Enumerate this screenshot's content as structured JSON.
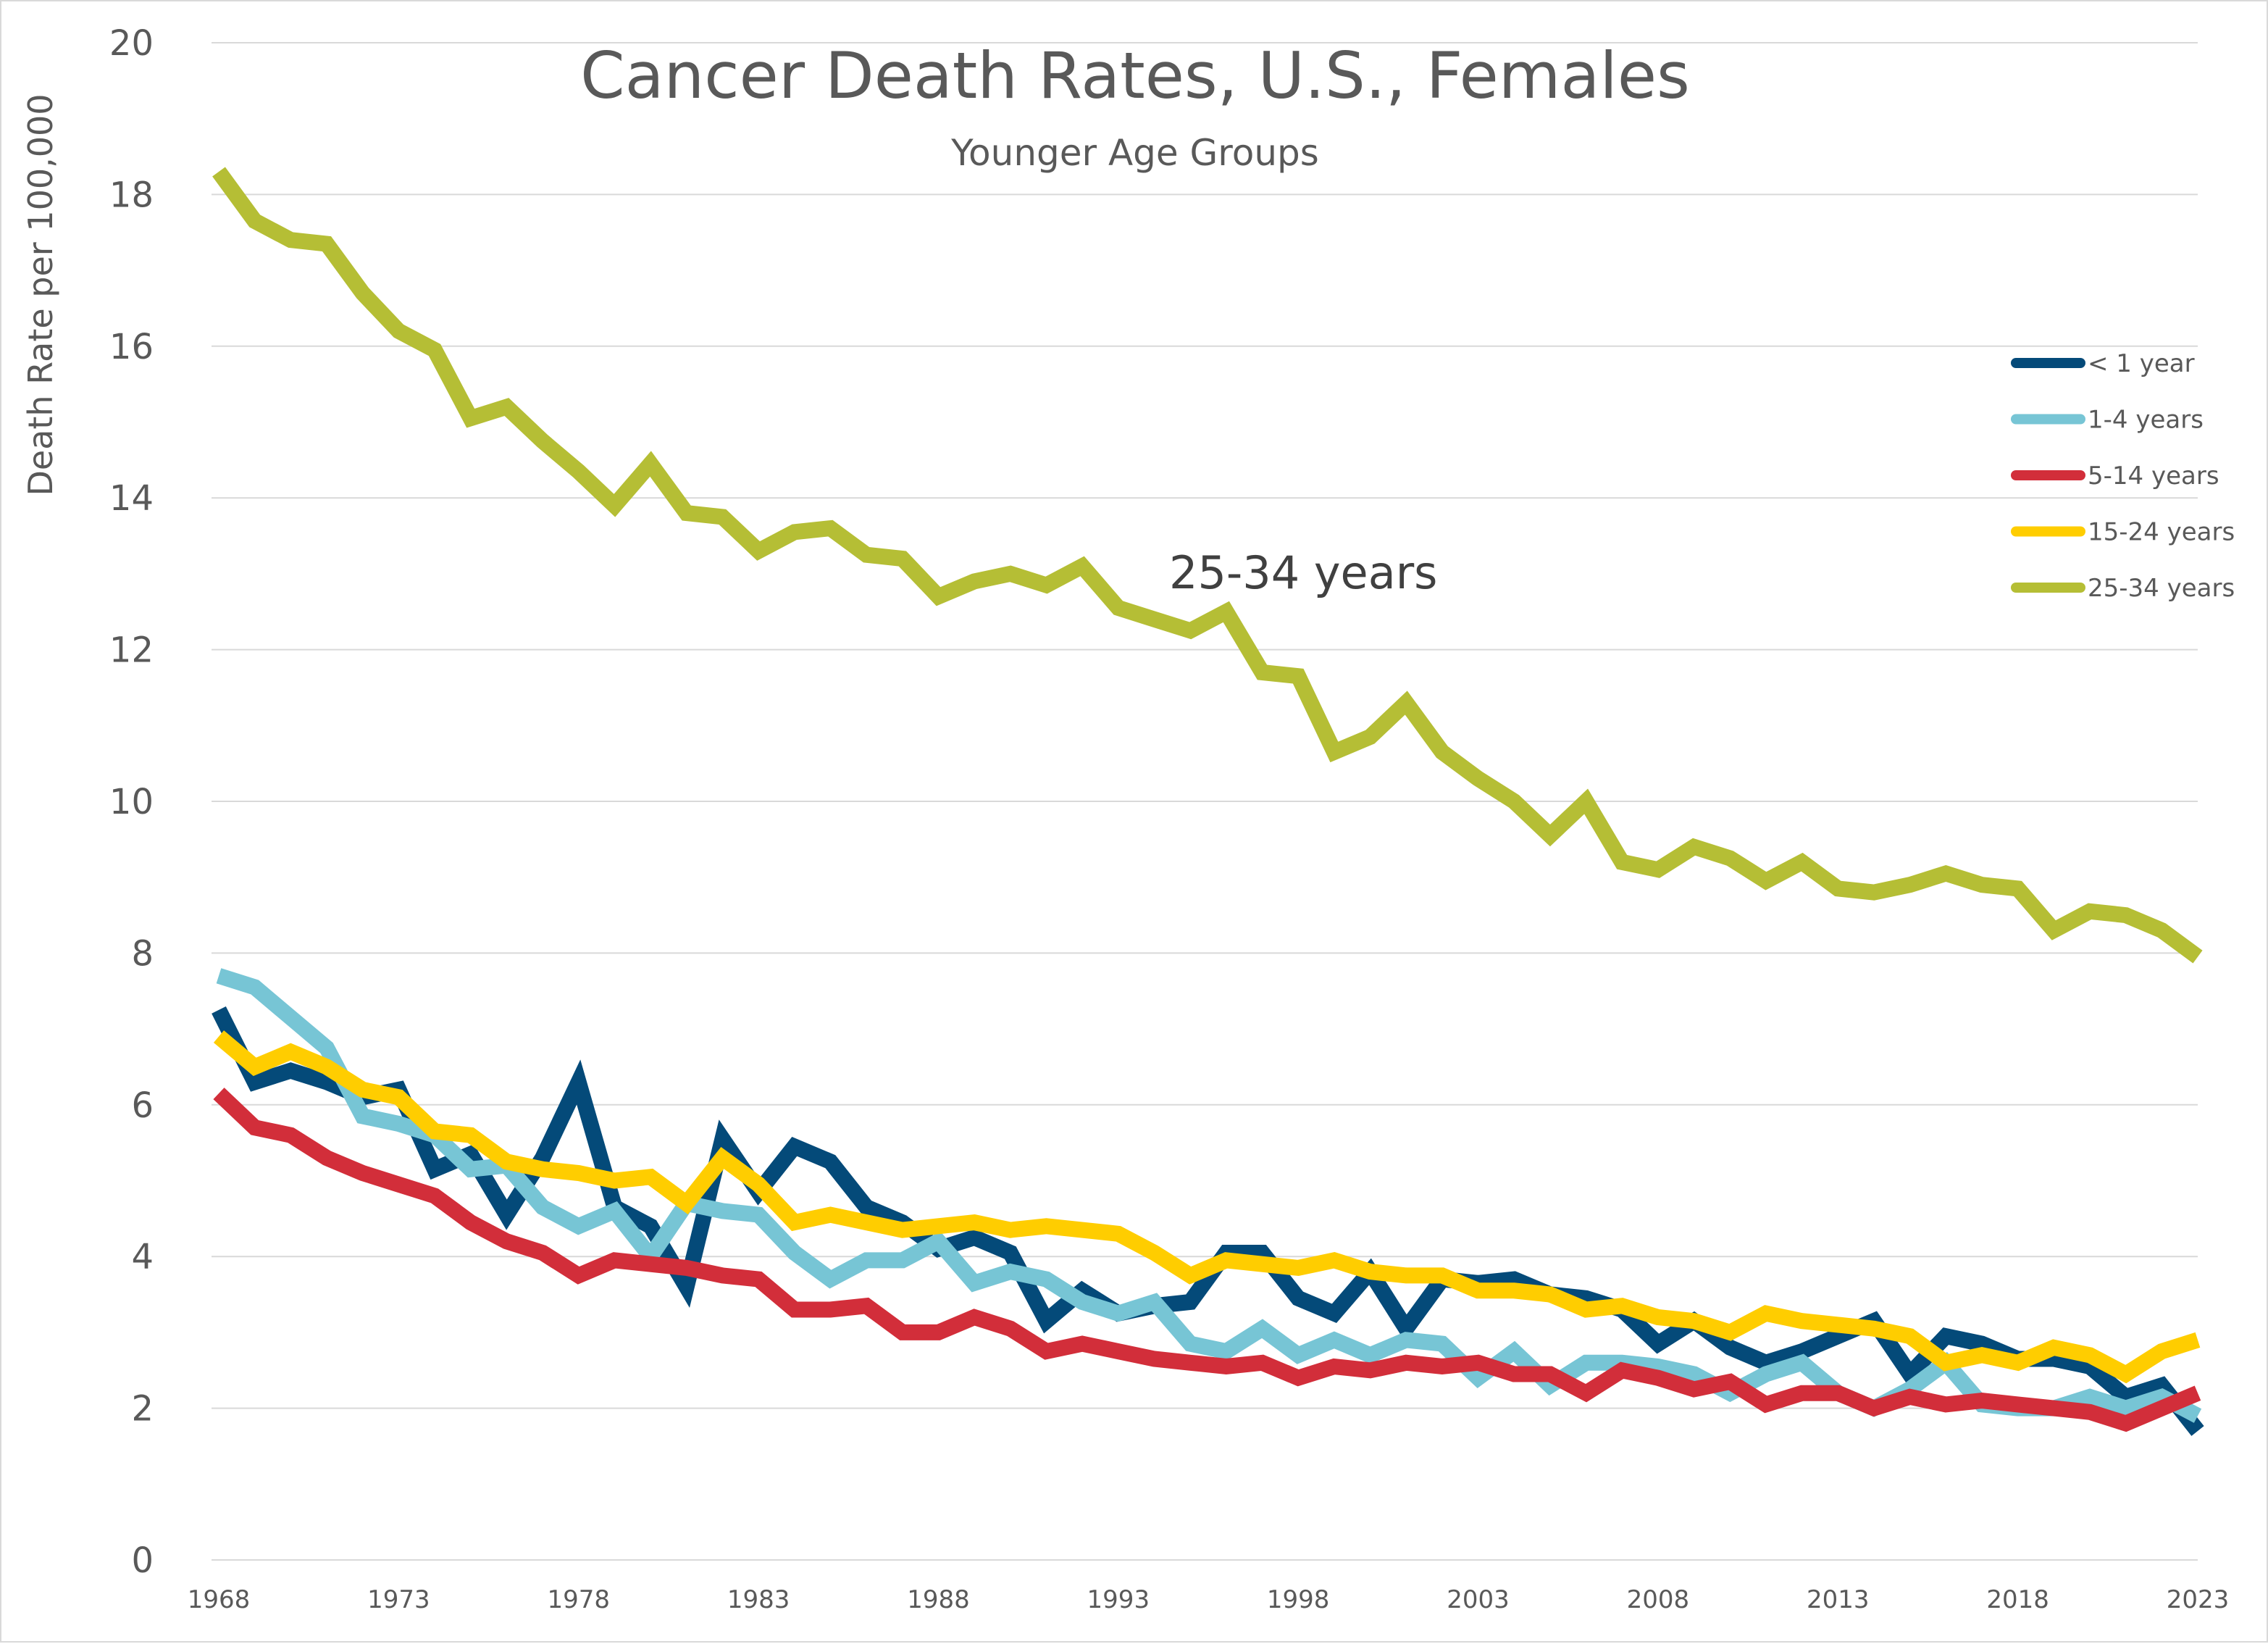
{
  "chart_data": {
    "type": "line",
    "title": "Cancer Death Rates, U.S., Females",
    "subtitle": "Younger Age Groups",
    "xlabel": "",
    "ylabel": "Death Rate per 100,000",
    "ylim": [
      0,
      20
    ],
    "yticks": [
      "0",
      "2",
      "4",
      "6",
      "8",
      "10",
      "12",
      "14",
      "16",
      "18",
      "20"
    ],
    "xlim": [
      1968,
      2023
    ],
    "xticks": [
      "1968",
      "1973",
      "1978",
      "1983",
      "1988",
      "1993",
      "1998",
      "2003",
      "2008",
      "2013",
      "2018",
      "2023"
    ],
    "grid": true,
    "legend_position": "right",
    "annotation": "25-34 years",
    "x": [
      1968,
      1969,
      1970,
      1971,
      1972,
      1973,
      1974,
      1975,
      1976,
      1977,
      1978,
      1979,
      1980,
      1981,
      1982,
      1983,
      1984,
      1985,
      1986,
      1987,
      1988,
      1989,
      1990,
      1991,
      1992,
      1993,
      1994,
      1995,
      1996,
      1997,
      1998,
      1999,
      2000,
      2001,
      2002,
      2003,
      2004,
      2005,
      2006,
      2007,
      2008,
      2009,
      2010,
      2011,
      2012,
      2013,
      2014,
      2015,
      2016,
      2017,
      2018,
      2019,
      2020,
      2021,
      2022,
      2023
    ],
    "series": [
      {
        "name": "< 1 year",
        "color": "#044a79",
        "values": [
          7.25,
          6.3,
          6.45,
          6.3,
          6.1,
          6.2,
          5.15,
          5.35,
          4.55,
          5.3,
          6.3,
          4.65,
          4.4,
          3.6,
          5.55,
          4.85,
          5.45,
          5.25,
          4.65,
          4.45,
          4.1,
          4.25,
          4.05,
          3.15,
          3.55,
          3.25,
          3.35,
          3.4,
          4.05,
          4.05,
          3.45,
          3.25,
          3.8,
          3.05,
          3.7,
          3.65,
          3.7,
          3.5,
          3.45,
          3.3,
          2.85,
          3.15,
          2.8,
          2.6,
          2.75,
          2.95,
          3.15,
          2.45,
          2.95,
          2.85,
          2.65,
          2.65,
          2.55,
          2.15,
          2.3,
          1.7
        ]
      },
      {
        "name": "1-4 years",
        "color": "#77c5d5",
        "values": [
          7.7,
          7.55,
          7.15,
          6.75,
          5.85,
          5.75,
          5.6,
          5.15,
          5.2,
          4.65,
          4.4,
          4.6,
          4.0,
          4.7,
          4.6,
          4.55,
          4.05,
          3.7,
          3.95,
          3.95,
          4.2,
          3.65,
          3.8,
          3.7,
          3.4,
          3.25,
          3.4,
          2.85,
          2.75,
          3.05,
          2.7,
          2.9,
          2.7,
          2.9,
          2.85,
          2.4,
          2.75,
          2.3,
          2.6,
          2.6,
          2.55,
          2.45,
          2.2,
          2.45,
          2.6,
          2.2,
          2.0,
          2.25,
          2.6,
          2.05,
          2.0,
          2.0,
          2.15,
          2.0,
          2.15,
          1.9
        ]
      },
      {
        "name": "5-14 years",
        "color": "#d22e3a",
        "values": [
          6.15,
          5.7,
          5.6,
          5.3,
          5.1,
          4.95,
          4.8,
          4.45,
          4.2,
          4.05,
          3.75,
          3.95,
          3.9,
          3.85,
          3.75,
          3.7,
          3.3,
          3.3,
          3.35,
          3.0,
          3.0,
          3.2,
          3.05,
          2.75,
          2.85,
          2.75,
          2.65,
          2.6,
          2.55,
          2.6,
          2.4,
          2.55,
          2.5,
          2.6,
          2.55,
          2.6,
          2.45,
          2.45,
          2.2,
          2.5,
          2.4,
          2.25,
          2.35,
          2.05,
          2.2,
          2.2,
          2.0,
          2.15,
          2.05,
          2.1,
          2.05,
          2.0,
          1.95,
          1.8,
          2.0,
          2.2
        ]
      },
      {
        "name": "15-24 years",
        "color": "#ffcd00",
        "values": [
          6.9,
          6.5,
          6.7,
          6.5,
          6.2,
          6.1,
          5.65,
          5.6,
          5.25,
          5.15,
          5.1,
          5.0,
          5.05,
          4.7,
          5.3,
          4.95,
          4.45,
          4.55,
          4.45,
          4.35,
          4.4,
          4.45,
          4.35,
          4.4,
          4.35,
          4.3,
          4.05,
          3.75,
          3.95,
          3.9,
          3.85,
          3.95,
          3.8,
          3.75,
          3.75,
          3.55,
          3.55,
          3.5,
          3.3,
          3.35,
          3.2,
          3.15,
          3.0,
          3.25,
          3.15,
          3.1,
          3.05,
          2.95,
          2.6,
          2.7,
          2.6,
          2.8,
          2.7,
          2.45,
          2.75,
          2.9
        ]
      },
      {
        "name": "25-34 years",
        "color": "#b5be35",
        "values": [
          18.3,
          17.65,
          17.4,
          17.35,
          16.7,
          16.2,
          15.95,
          15.05,
          15.2,
          14.75,
          14.35,
          13.9,
          14.45,
          13.8,
          13.75,
          13.3,
          13.55,
          13.6,
          13.25,
          13.2,
          12.7,
          12.9,
          13.0,
          12.85,
          13.1,
          12.55,
          12.4,
          12.25,
          12.5,
          11.7,
          11.65,
          10.65,
          10.85,
          11.3,
          10.65,
          10.3,
          10.0,
          9.55,
          10.0,
          9.2,
          9.1,
          9.4,
          9.25,
          8.95,
          9.2,
          8.85,
          8.8,
          8.9,
          9.05,
          8.9,
          8.85,
          8.3,
          8.55,
          8.5,
          8.3,
          7.95
        ]
      }
    ]
  }
}
